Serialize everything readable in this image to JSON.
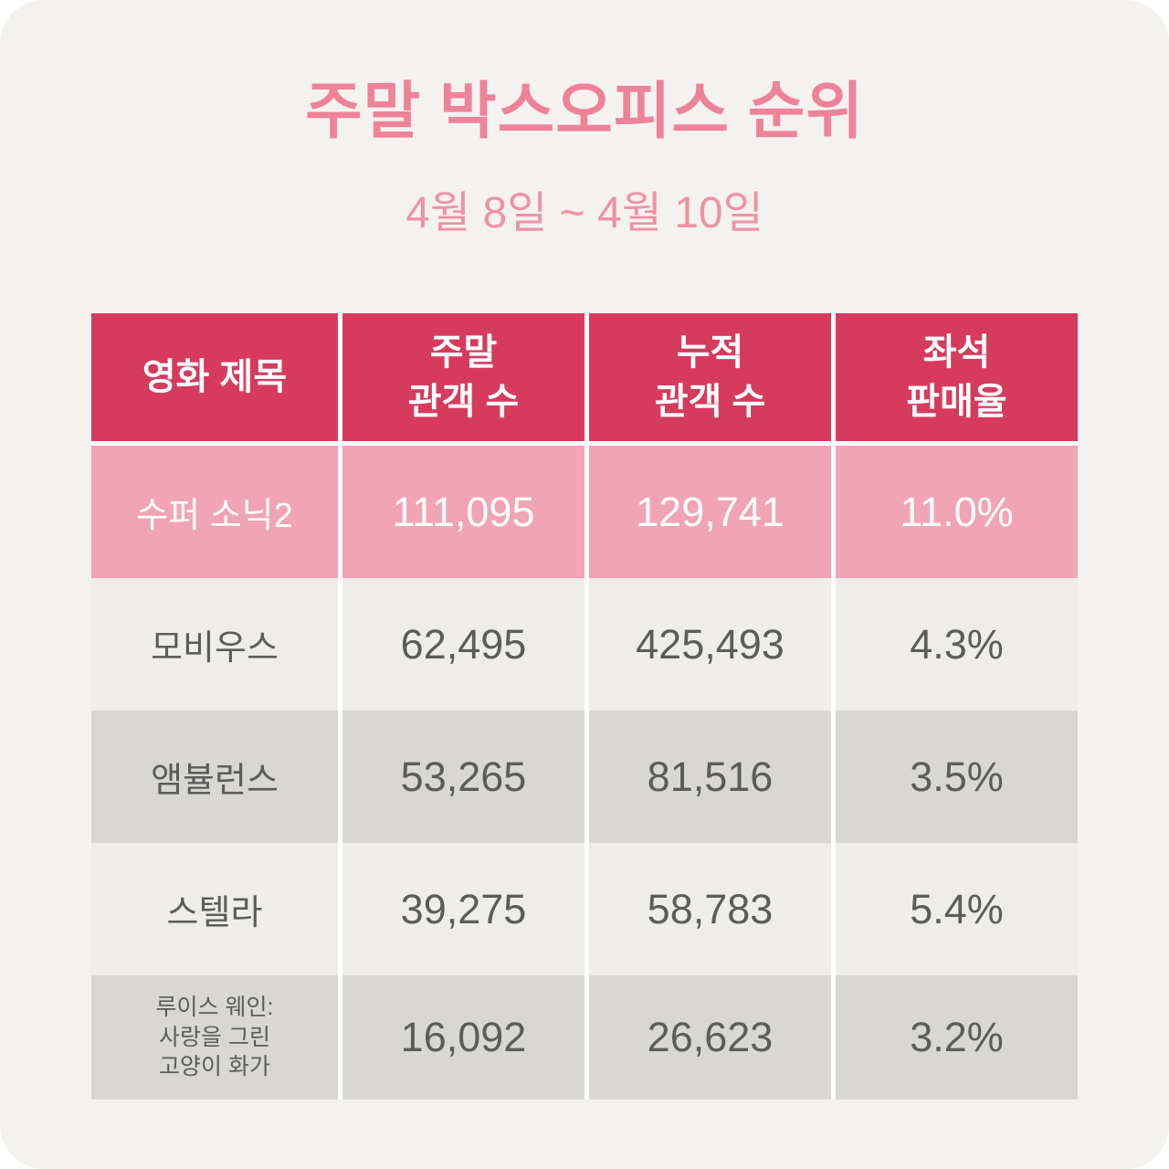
{
  "page": {
    "title": "주말 박스오피스 순위",
    "subtitle": "4월 8일 ~ 4월 10일"
  },
  "colors": {
    "canvas_bg": "#f4f2ef",
    "header_bg": "#d63b5e",
    "header_text": "#ffffff",
    "highlight_bg": "#f1a4b3",
    "highlight_text": "#ffffff",
    "row_light_bg": "#efedea",
    "row_dark_bg": "#d9d7d4",
    "body_text": "#5c5c5c",
    "title_color": "#ee8298",
    "subtitle_color": "#ef92a4"
  },
  "table": {
    "headers": [
      "영화 제목",
      "주말\n관객 수",
      "누적\n관객 수",
      "좌석\n판매율"
    ],
    "rows": [
      {
        "title": "수퍼 소닉2",
        "weekend": "111,095",
        "cumulative": "129,741",
        "seat_rate": "11.0%"
      },
      {
        "title": "모비우스",
        "weekend": "62,495",
        "cumulative": "425,493",
        "seat_rate": "4.3%"
      },
      {
        "title": "앰뷸런스",
        "weekend": "53,265",
        "cumulative": "81,516",
        "seat_rate": "3.5%"
      },
      {
        "title": "스텔라",
        "weekend": "39,275",
        "cumulative": "58,783",
        "seat_rate": "5.4%"
      },
      {
        "title": "루이스 웨인:\n사랑을 그린\n고양이 화가",
        "weekend": "16,092",
        "cumulative": "26,623",
        "seat_rate": "3.2%"
      }
    ]
  },
  "chart_data": {
    "type": "table",
    "title": "주말 박스오피스 순위",
    "subtitle": "4월 8일 ~ 4월 10일",
    "columns": [
      "영화 제목",
      "주말 관객 수",
      "누적 관객 수",
      "좌석 판매율"
    ],
    "rows": [
      [
        "수퍼 소닉2",
        111095,
        129741,
        "11.0%"
      ],
      [
        "모비우스",
        62495,
        425493,
        "4.3%"
      ],
      [
        "앰뷸런스",
        53265,
        81516,
        "3.5%"
      ],
      [
        "스텔라",
        39275,
        58783,
        "5.4%"
      ],
      [
        "루이스 웨인: 사랑을 그린 고양이 화가",
        16092,
        26623,
        "3.2%"
      ]
    ]
  }
}
